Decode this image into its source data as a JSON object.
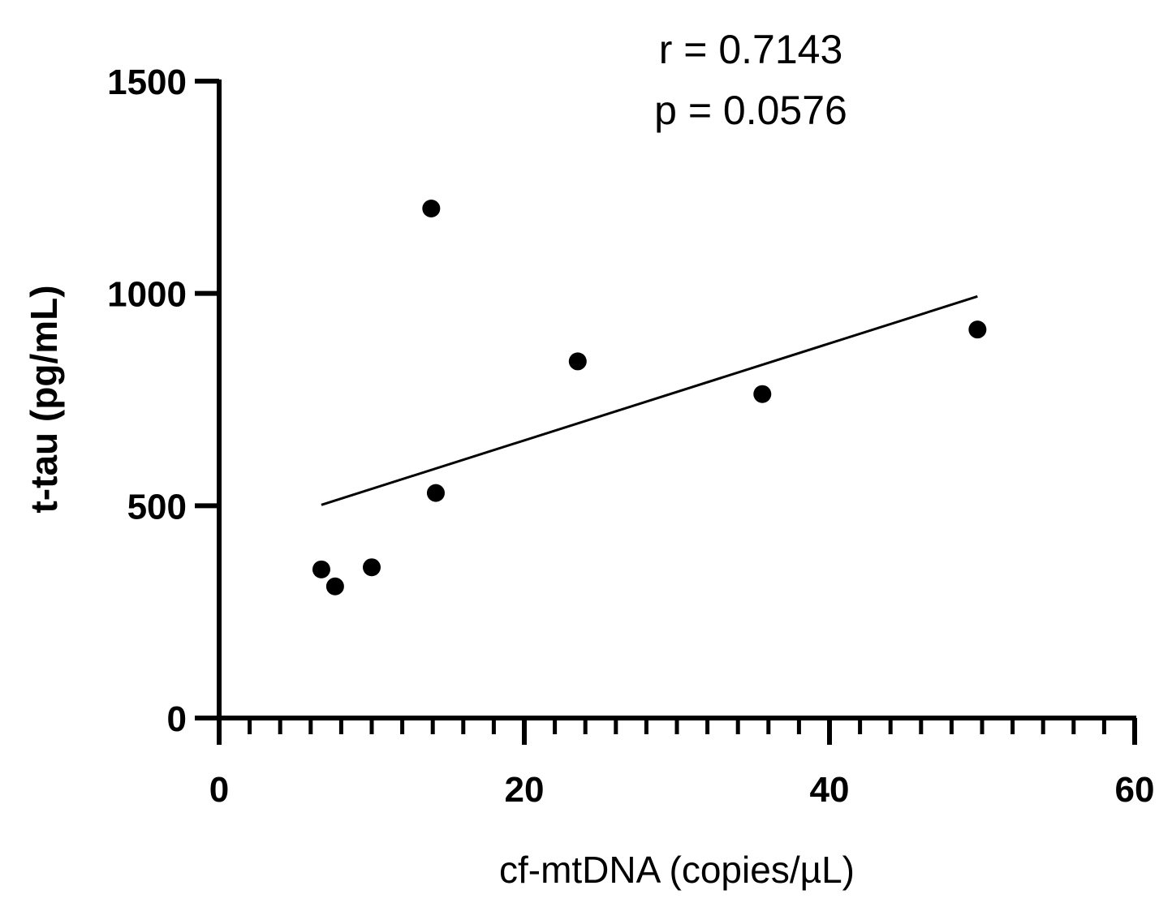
{
  "chart_data": {
    "type": "scatter",
    "title": "",
    "xlabel": "cf-mtDNA (copies/µL)",
    "ylabel": "t-tau (pg/mL)",
    "xlim": [
      0,
      60
    ],
    "ylim": [
      0,
      1500
    ],
    "x_ticks": [
      "0",
      "20",
      "40",
      "60"
    ],
    "y_ticks": [
      "0",
      "500",
      "1000",
      "1500"
    ],
    "grid": false,
    "legend": "none",
    "annotations": [
      "r = 0.7143",
      "p = 0.0576"
    ],
    "point_color": "#000000",
    "series": [
      {
        "x": [
          6.7,
          7.6,
          10.0,
          13.9,
          14.2,
          23.5,
          35.6,
          49.7
        ],
        "y": [
          350,
          310,
          355,
          1200,
          530,
          840,
          763,
          915
        ]
      }
    ],
    "regression_line": {
      "x": [
        6.7,
        49.7
      ],
      "y": [
        502,
        993
      ]
    }
  }
}
